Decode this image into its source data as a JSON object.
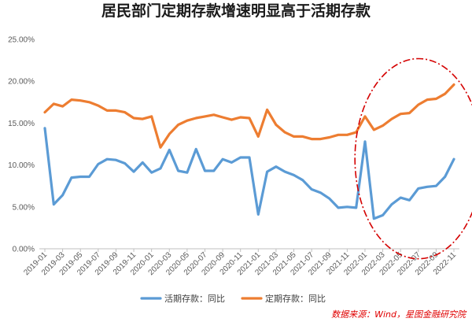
{
  "chart_data": {
    "type": "line",
    "title": "居民部门定期存款增速明显高于活期存款",
    "xlabel": "",
    "ylabel": "",
    "ylim": [
      0,
      25
    ],
    "yticks": [
      "0.00%",
      "5.00%",
      "10.00%",
      "15.00%",
      "20.00%",
      "25.00%"
    ],
    "grid": false,
    "legend_position": "bottom",
    "x": [
      "2019-01",
      "2019-02",
      "2019-03",
      "2019-04",
      "2019-05",
      "2019-06",
      "2019-07",
      "2019-08",
      "2019-09",
      "2019-10",
      "2019-11",
      "2019-12",
      "2020-01",
      "2020-02",
      "2020-03",
      "2020-04",
      "2020-05",
      "2020-06",
      "2020-07",
      "2020-08",
      "2020-09",
      "2020-10",
      "2020-11",
      "2020-12",
      "2021-01",
      "2021-02",
      "2021-03",
      "2021-04",
      "2021-05",
      "2021-06",
      "2021-07",
      "2021-08",
      "2021-09",
      "2021-10",
      "2021-11",
      "2021-12",
      "2022-01",
      "2022-02",
      "2022-03",
      "2022-04",
      "2022-05",
      "2022-06",
      "2022-07",
      "2022-08",
      "2022-09",
      "2022-10",
      "2022-11"
    ],
    "xticks": [
      "2019-01",
      "2019-03",
      "2019-05",
      "2019-07",
      "2019-09",
      "2019-11",
      "2020-01",
      "2020-03",
      "2020-05",
      "2020-07",
      "2020-09",
      "2020-11",
      "2021-01",
      "2021-03",
      "2021-05",
      "2021-07",
      "2021-09",
      "2021-11",
      "2022-01",
      "2022-03",
      "2022-05",
      "2022-07",
      "2022-09",
      "2022-11"
    ],
    "series": [
      {
        "name": "活期存款：同比",
        "color": "#5b9bd5",
        "values": [
          14.4,
          5.3,
          6.4,
          8.5,
          8.6,
          8.6,
          10.1,
          10.7,
          10.6,
          10.2,
          9.2,
          10.3,
          9.1,
          9.6,
          11.8,
          9.3,
          9.1,
          11.9,
          9.3,
          9.3,
          10.7,
          10.3,
          10.9,
          10.9,
          4.1,
          9.2,
          9.8,
          9.2,
          8.8,
          8.2,
          7.1,
          6.7,
          6.0,
          4.9,
          5.0,
          4.9,
          12.8,
          3.6,
          4.0,
          5.3,
          6.1,
          5.8,
          7.2,
          7.4,
          7.5,
          8.6,
          10.7
        ]
      },
      {
        "name": "定期存款：同比",
        "color": "#ed7d31",
        "values": [
          16.3,
          17.3,
          17.0,
          17.8,
          17.7,
          17.5,
          17.1,
          16.5,
          16.5,
          16.3,
          15.6,
          15.5,
          15.8,
          12.1,
          13.7,
          14.8,
          15.3,
          15.6,
          15.8,
          16.0,
          15.7,
          15.4,
          15.7,
          15.6,
          13.4,
          16.6,
          14.8,
          13.9,
          13.4,
          13.4,
          13.1,
          13.1,
          13.3,
          13.6,
          13.6,
          13.9,
          15.8,
          14.2,
          14.7,
          15.5,
          16.1,
          16.2,
          17.2,
          17.8,
          17.9,
          18.5,
          19.6
        ]
      }
    ],
    "annotation": "red dash-dot ellipse highlighting 2022 segment"
  },
  "footer": {
    "source": "数据来源：Wind，星图金融研究院"
  },
  "colors": {
    "axis": "#bfbfbf",
    "text": "#595959",
    "highlight": "#d40000"
  }
}
